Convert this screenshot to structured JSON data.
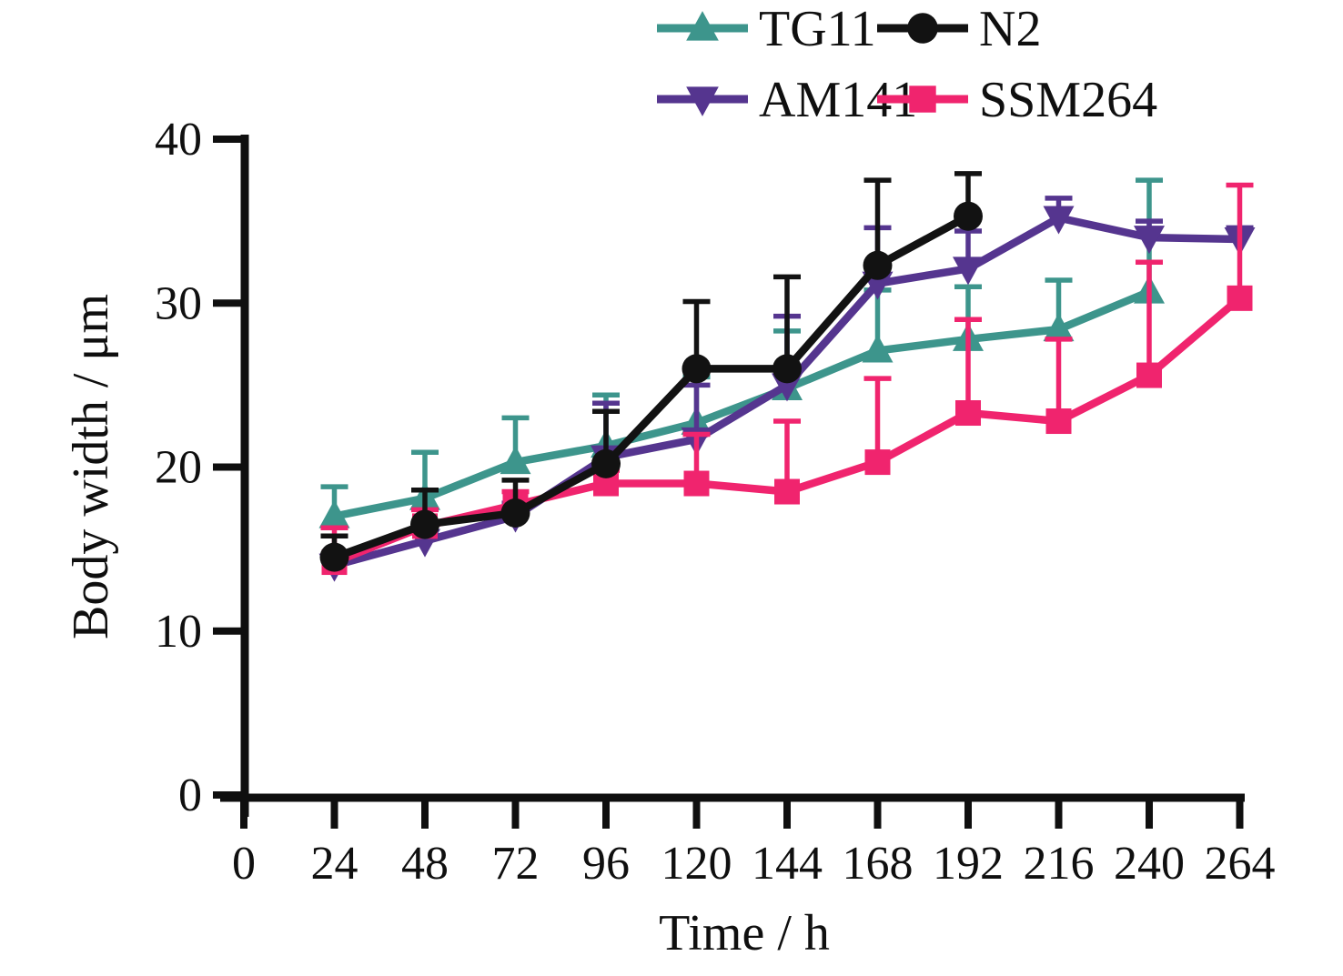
{
  "chart_data": {
    "type": "line",
    "title": "",
    "xlabel": "Time / h",
    "ylabel": "Body width / μm",
    "xlim": [
      0,
      276
    ],
    "ylim": [
      0,
      40
    ],
    "grid": false,
    "error_bars": "upper-only-with-caps",
    "x_ticks": [
      0,
      24,
      48,
      72,
      96,
      120,
      144,
      168,
      192,
      216,
      240,
      264
    ],
    "x_tick_labels": [
      "0",
      "24",
      "48",
      "72",
      "96",
      "120",
      "144",
      "168",
      "192",
      "216",
      "240",
      "264"
    ],
    "y_ticks": [
      0,
      10,
      20,
      30,
      40
    ],
    "y_tick_labels": [
      "0",
      "10",
      "20",
      "30",
      "40"
    ],
    "axis_color": "#0f0f0f",
    "series": [
      {
        "name": "TG11",
        "color": "#3D958C",
        "marker": "triangle-up",
        "x": [
          24,
          48,
          72,
          96,
          120,
          144,
          168,
          192,
          216,
          240
        ],
        "y": [
          17.0,
          18.1,
          20.3,
          21.3,
          22.7,
          24.8,
          27.1,
          27.8,
          28.4,
          30.7
        ],
        "err_up": [
          1.8,
          2.8,
          2.7,
          3.1,
          2.8,
          3.5,
          3.7,
          3.2,
          3.0,
          6.8
        ]
      },
      {
        "name": "AM141",
        "color": "#55358F",
        "marker": "triangle-down",
        "x": [
          24,
          48,
          72,
          96,
          120,
          144,
          168,
          192,
          216,
          240,
          264
        ],
        "y": [
          14.0,
          15.5,
          17.0,
          20.6,
          21.7,
          25.0,
          31.2,
          32.1,
          35.2,
          34.0,
          33.9
        ],
        "err_up": [
          0.6,
          0.8,
          0.8,
          3.3,
          3.3,
          4.2,
          3.4,
          2.3,
          1.2,
          1.0,
          0.7
        ]
      },
      {
        "name": "SSM264",
        "color": "#F0246E",
        "marker": "square",
        "x": [
          24,
          48,
          72,
          96,
          120,
          144,
          168,
          192,
          216,
          240,
          264
        ],
        "y": [
          14.2,
          16.4,
          17.7,
          19.0,
          19.0,
          18.5,
          20.3,
          23.3,
          22.8,
          25.6,
          30.3
        ],
        "err_up": [
          2.1,
          1.0,
          0.8,
          0.8,
          3.0,
          4.3,
          5.1,
          5.7,
          5.0,
          6.9,
          6.9
        ]
      },
      {
        "name": "N2",
        "color": "#121212",
        "marker": "circle",
        "x": [
          24,
          48,
          72,
          96,
          120,
          144,
          168,
          192
        ],
        "y": [
          14.5,
          16.5,
          17.2,
          20.2,
          26.0,
          26.0,
          32.3,
          35.3
        ],
        "err_up": [
          1.3,
          2.1,
          2.0,
          3.2,
          4.1,
          5.6,
          5.2,
          2.6
        ]
      }
    ],
    "legend": {
      "position": "top",
      "grid": [
        [
          "TG11",
          "N2"
        ],
        [
          "AM141",
          "SSM264"
        ]
      ]
    }
  }
}
